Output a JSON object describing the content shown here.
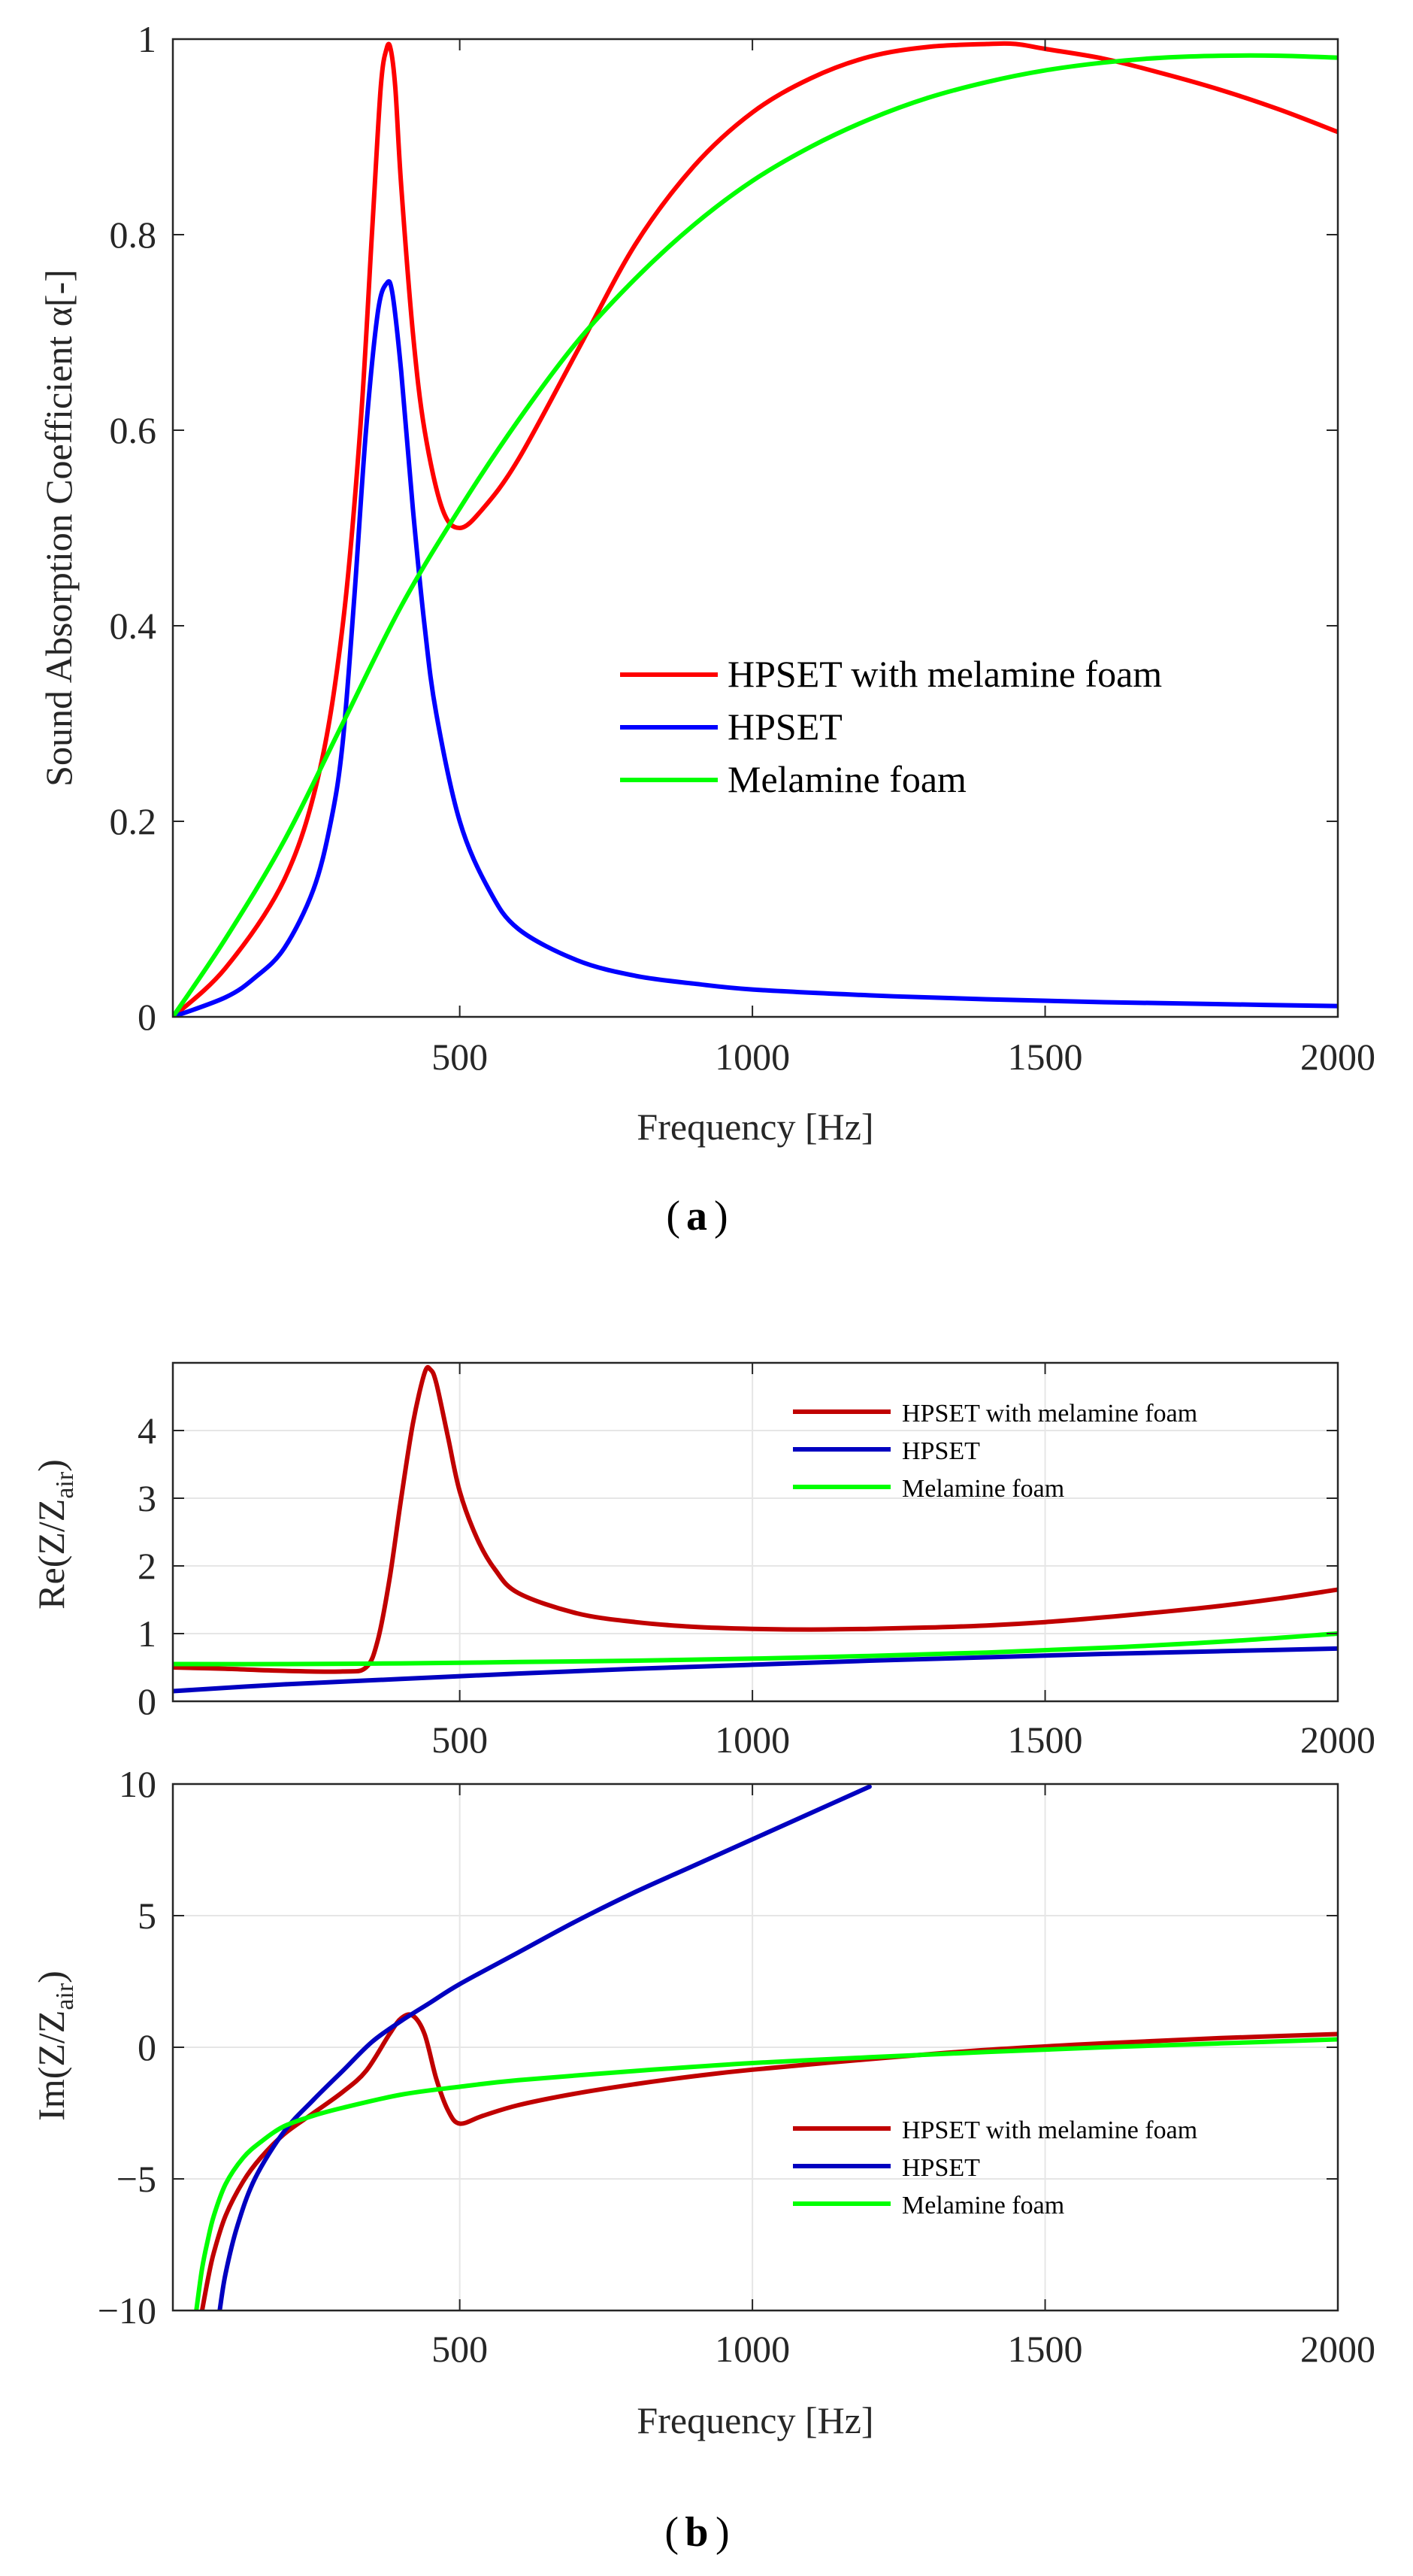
{
  "figure": {
    "panel_a_label": "a",
    "panel_b_label": "b"
  },
  "colors": {
    "red_a": "#ff0000",
    "blue_a": "#0000ff",
    "green_a": "#00ff00",
    "red_b": "#c00000",
    "blue_b": "#0000c0",
    "green_b": "#00ff00",
    "grid": "#e6e6e6",
    "axis": "#262626"
  },
  "chart_data": [
    {
      "id": "a",
      "type": "line",
      "xlabel": "Frequency [Hz]",
      "ylabel": "Sound Absorption Coefficient α[-]",
      "xlim": [
        10,
        2000
      ],
      "ylim": [
        0,
        1
      ],
      "xticks": [
        500,
        1000,
        1500,
        2000
      ],
      "yticks": [
        0,
        0.2,
        0.4,
        0.6,
        0.8,
        1
      ],
      "ytick_labels": [
        "0",
        "0.2",
        "0.4",
        "0.6",
        "0.8",
        "1"
      ],
      "grid": false,
      "legend_position": "center-right",
      "series": [
        {
          "name": "HPSET with melamine foam",
          "color_key": "red_a",
          "x": [
            10,
            100,
            200,
            260,
            300,
            330,
            350,
            365,
            375,
            382,
            390,
            400,
            420,
            440,
            470,
            500,
            540,
            600,
            700,
            800,
            900,
            1000,
            1100,
            1200,
            1300,
            1400,
            1450,
            1500,
            1600,
            1700,
            1800,
            1900,
            2000
          ],
          "y": [
            0.0,
            0.05,
            0.14,
            0.25,
            0.4,
            0.6,
            0.8,
            0.95,
            0.99,
            0.99,
            0.95,
            0.85,
            0.7,
            0.6,
            0.52,
            0.5,
            0.52,
            0.57,
            0.68,
            0.79,
            0.87,
            0.925,
            0.96,
            0.982,
            0.992,
            0.995,
            0.995,
            0.99,
            0.98,
            0.965,
            0.948,
            0.928,
            0.905
          ]
        },
        {
          "name": "HPSET",
          "color_key": "blue_a",
          "x": [
            10,
            100,
            150,
            200,
            250,
            280,
            300,
            320,
            340,
            360,
            375,
            385,
            400,
            420,
            440,
            460,
            500,
            550,
            600,
            700,
            800,
            900,
            1000,
            1200,
            1400,
            1600,
            1800,
            2000
          ],
          "y": [
            0.0,
            0.02,
            0.04,
            0.07,
            0.13,
            0.2,
            0.28,
            0.43,
            0.6,
            0.72,
            0.75,
            0.74,
            0.66,
            0.52,
            0.4,
            0.31,
            0.2,
            0.13,
            0.09,
            0.058,
            0.042,
            0.034,
            0.028,
            0.022,
            0.018,
            0.015,
            0.013,
            0.011
          ]
        },
        {
          "name": "Melamine foam",
          "color_key": "green_a",
          "x": [
            10,
            100,
            200,
            300,
            400,
            500,
            600,
            700,
            800,
            900,
            1000,
            1100,
            1200,
            1300,
            1400,
            1500,
            1600,
            1700,
            1800,
            1900,
            2000
          ],
          "y": [
            0.0,
            0.08,
            0.18,
            0.3,
            0.42,
            0.52,
            0.61,
            0.69,
            0.755,
            0.81,
            0.855,
            0.89,
            0.918,
            0.94,
            0.956,
            0.968,
            0.976,
            0.981,
            0.983,
            0.983,
            0.981
          ]
        }
      ]
    },
    {
      "id": "b-re",
      "type": "line",
      "xlabel": "",
      "ylabel_main": "Re(Z/Z",
      "ylabel_sub": "air",
      "ylabel_end": ")",
      "xlim": [
        10,
        2000
      ],
      "ylim": [
        0,
        5
      ],
      "xticks": [
        500,
        1000,
        1500,
        2000
      ],
      "yticks": [
        0,
        1,
        2,
        3,
        4
      ],
      "ytick_labels": [
        "0",
        "1",
        "2",
        "3",
        "4"
      ],
      "grid": true,
      "legend_position": "top-right",
      "series": [
        {
          "name": "HPSET with melamine foam",
          "color_key": "red_b",
          "x": [
            10,
            100,
            200,
            300,
            340,
            360,
            380,
            400,
            420,
            440,
            450,
            460,
            480,
            500,
            530,
            560,
            600,
            700,
            800,
            900,
            1000,
            1100,
            1200,
            1300,
            1400,
            1500,
            1600,
            1700,
            1800,
            1900,
            2000
          ],
          "y": [
            0.5,
            0.48,
            0.45,
            0.44,
            0.5,
            0.9,
            1.8,
            3.0,
            4.1,
            4.85,
            4.9,
            4.7,
            3.9,
            3.1,
            2.4,
            1.95,
            1.6,
            1.3,
            1.17,
            1.1,
            1.07,
            1.06,
            1.07,
            1.09,
            1.12,
            1.17,
            1.24,
            1.32,
            1.41,
            1.52,
            1.65
          ]
        },
        {
          "name": "HPSET",
          "color_key": "blue_b",
          "x": [
            10,
            200,
            400,
            600,
            800,
            1000,
            1200,
            1400,
            1600,
            1800,
            2000
          ],
          "y": [
            0.15,
            0.25,
            0.33,
            0.41,
            0.48,
            0.54,
            0.6,
            0.65,
            0.7,
            0.74,
            0.78
          ]
        },
        {
          "name": "Melamine foam",
          "color_key": "green_b",
          "x": [
            10,
            200,
            400,
            600,
            800,
            1000,
            1200,
            1400,
            1600,
            1800,
            2000
          ],
          "y": [
            0.55,
            0.55,
            0.56,
            0.58,
            0.6,
            0.63,
            0.67,
            0.72,
            0.79,
            0.88,
            1.0
          ]
        }
      ]
    },
    {
      "id": "b-im",
      "type": "line",
      "xlabel": "Frequency [Hz]",
      "ylabel_main": "Im(Z/Z",
      "ylabel_sub": "air",
      "ylabel_end": ")",
      "xlim": [
        10,
        2000
      ],
      "ylim": [
        -10,
        10
      ],
      "xticks": [
        500,
        1000,
        1500,
        2000
      ],
      "yticks": [
        -10,
        -5,
        0,
        5,
        10
      ],
      "ytick_labels": [
        "-10",
        "-5",
        "0",
        "5",
        "10"
      ],
      "grid": true,
      "legend_position": "lower-right",
      "series": [
        {
          "name": "HPSET with melamine foam",
          "color_key": "red_b",
          "x": [
            60,
            70,
            80,
            100,
            130,
            160,
            200,
            250,
            300,
            340,
            380,
            400,
            420,
            440,
            460,
            480,
            500,
            540,
            600,
            700,
            800,
            900,
            1000,
            1200,
            1400,
            1600,
            1800,
            2000
          ],
          "y": [
            -10,
            -8.8,
            -7.8,
            -6.4,
            -5.1,
            -4.2,
            -3.3,
            -2.5,
            -1.7,
            -0.9,
            0.5,
            1.1,
            1.2,
            0.5,
            -1.2,
            -2.4,
            -2.9,
            -2.6,
            -2.2,
            -1.75,
            -1.4,
            -1.1,
            -0.85,
            -0.45,
            -0.1,
            0.15,
            0.35,
            0.5
          ]
        },
        {
          "name": "HPSET",
          "color_key": "blue_b",
          "x": [
            90,
            100,
            120,
            150,
            200,
            250,
            300,
            350,
            400,
            450,
            500,
            600,
            700,
            800,
            900,
            1000,
            1100,
            1200
          ],
          "y": [
            -10,
            -8.6,
            -6.8,
            -5.0,
            -3.2,
            -2.0,
            -0.9,
            0.2,
            1.0,
            1.7,
            2.4,
            3.6,
            4.8,
            5.9,
            6.9,
            7.9,
            8.9,
            9.9
          ]
        },
        {
          "name": "Melamine foam",
          "color_key": "green_b",
          "x": [
            50,
            60,
            70,
            80,
            100,
            130,
            160,
            200,
            250,
            300,
            400,
            500,
            600,
            800,
            1000,
            1200,
            1400,
            1600,
            1800,
            2000
          ],
          "y": [
            -10,
            -8.4,
            -7.3,
            -6.4,
            -5.2,
            -4.2,
            -3.6,
            -3.0,
            -2.6,
            -2.3,
            -1.8,
            -1.5,
            -1.25,
            -0.9,
            -0.6,
            -0.38,
            -0.18,
            0.0,
            0.15,
            0.3
          ]
        }
      ]
    }
  ]
}
